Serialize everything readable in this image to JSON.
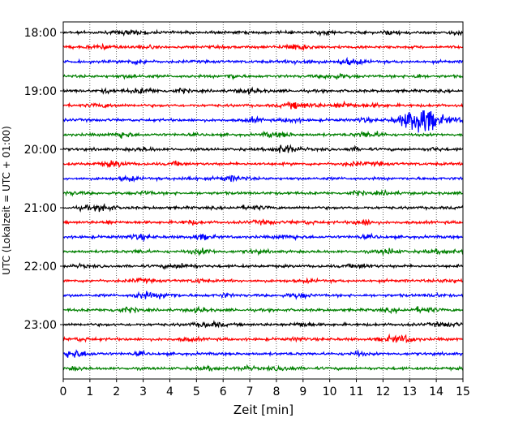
{
  "chart_data": {
    "type": "line",
    "title": "",
    "xlabel": "Zeit  [min]",
    "ylabel": "UTC (Lokalzeit = UTC + 01:00)",
    "xlim": [
      0,
      15
    ],
    "x_ticks": [
      0,
      1,
      2,
      3,
      4,
      5,
      6,
      7,
      8,
      9,
      10,
      11,
      12,
      13,
      14,
      15
    ],
    "y_ticks": [
      "18:00",
      "19:00",
      "20:00",
      "21:00",
      "22:00",
      "23:00"
    ],
    "grid": "vertical dotted",
    "trace_interval_minutes": 15,
    "trace_colors": [
      "#000000",
      "#ff0000",
      "#0000ff",
      "#008000"
    ],
    "start_hour": "18:00",
    "end_hour": "23:45",
    "events": [
      {
        "trace": "19:30",
        "minute": 13.4,
        "amplitude": "large"
      },
      {
        "trace": "19:15",
        "minute": 10.5,
        "amplitude": "medium"
      },
      {
        "trace": "19:45",
        "minute": 2.2,
        "amplitude": "medium"
      },
      {
        "trace": "20:00",
        "minute": 8.2,
        "amplitude": "medium"
      },
      {
        "trace": "21:15",
        "minute": 11.3,
        "amplitude": "medium"
      },
      {
        "trace": "21:45",
        "minute": 12.2,
        "amplitude": "medium"
      },
      {
        "trace": "22:30",
        "minute": 3.0,
        "amplitude": "medium"
      },
      {
        "trace": "23:15",
        "minute": 12.9,
        "amplitude": "medium"
      }
    ]
  }
}
